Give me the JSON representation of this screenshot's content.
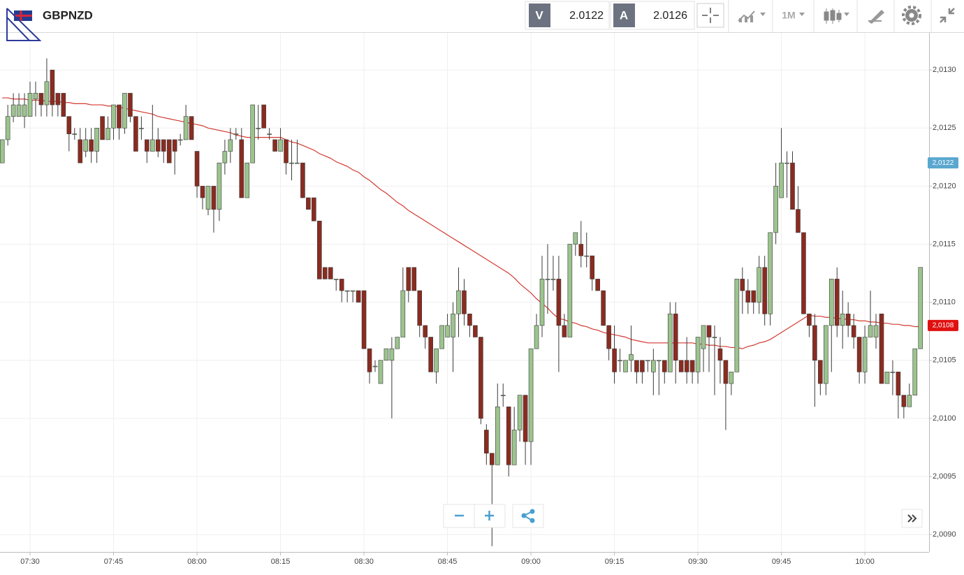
{
  "header": {
    "symbol": "GBPNZD",
    "bid": {
      "label": "V",
      "value": 2.0122
    },
    "ask": {
      "label": "A",
      "value": 2.0126
    },
    "interval": "1M"
  },
  "chart_data": {
    "type": "candlestick",
    "categories": [
      null,
      null,
      null,
      null,
      null,
      "07:30",
      null,
      null,
      null,
      null,
      null,
      null,
      null,
      null,
      null,
      null,
      null,
      null,
      null,
      null,
      "07:45",
      null,
      null,
      null,
      null,
      null,
      null,
      null,
      null,
      null,
      null,
      null,
      null,
      null,
      null,
      "08:00",
      null,
      null,
      null,
      null,
      null,
      null,
      null,
      null,
      null,
      null,
      null,
      null,
      null,
      null,
      "08:15",
      null,
      null,
      null,
      null,
      null,
      null,
      null,
      null,
      null,
      null,
      null,
      null,
      null,
      null,
      "08:30",
      null,
      null,
      null,
      null,
      null,
      null,
      null,
      null,
      null,
      null,
      null,
      null,
      null,
      null,
      "08:45",
      null,
      null,
      null,
      null,
      null,
      null,
      null,
      null,
      null,
      null,
      null,
      null,
      null,
      null,
      "09:00",
      null,
      null,
      null,
      null,
      null,
      null,
      null,
      null,
      null,
      null,
      null,
      null,
      null,
      null,
      "09:15",
      null,
      null,
      null,
      null,
      null,
      null,
      null,
      null,
      null,
      null,
      null,
      null,
      null,
      null,
      "09:30",
      null,
      null,
      null,
      null,
      null,
      null,
      null,
      null,
      null,
      null,
      null,
      null,
      null,
      null,
      "09:45",
      null,
      null,
      null,
      null,
      null,
      null,
      null,
      null,
      null,
      null,
      null,
      null,
      null,
      null,
      "10:00",
      null,
      null,
      null,
      null,
      null,
      null,
      null,
      null,
      null,
      null
    ],
    "ohlc": [
      [
        2.0122,
        2.0124,
        2.0122,
        2.0124
      ],
      [
        2.0124,
        2.0127,
        2.01235,
        2.0126
      ],
      [
        2.0126,
        2.0128,
        2.01255,
        2.0127
      ],
      [
        2.0126,
        2.0128,
        2.0126,
        2.0127
      ],
      [
        2.0126,
        2.0128,
        2.0125,
        2.0127
      ],
      [
        2.0126,
        2.0129,
        2.0126,
        2.0128
      ],
      [
        2.01275,
        2.0129,
        2.0126,
        2.0128
      ],
      [
        2.0128,
        2.0128,
        2.0126,
        2.0127
      ],
      [
        2.0127,
        2.0131,
        2.0126,
        2.0129
      ],
      [
        2.013,
        2.013,
        2.0126,
        2.0127
      ],
      [
        2.0128,
        2.0128,
        2.0126,
        2.0127
      ],
      [
        2.0128,
        2.0128,
        2.0126,
        2.0126
      ],
      [
        2.0126,
        2.0126,
        2.0123,
        2.01245
      ],
      [
        2.01245,
        2.0125,
        2.0124,
        2.01245
      ],
      [
        2.0124,
        2.0125,
        2.0122,
        2.0122
      ],
      [
        2.0123,
        2.0125,
        2.01225,
        2.0124
      ],
      [
        2.0124,
        2.0125,
        2.0122,
        2.0123
      ],
      [
        2.0123,
        2.0125,
        2.0122,
        2.0125
      ],
      [
        2.0126,
        2.0126,
        2.0124,
        2.0124
      ],
      [
        2.0124,
        2.0126,
        2.0124,
        2.0125
      ],
      [
        2.0125,
        2.0127,
        2.0124,
        2.0127
      ],
      [
        2.0127,
        2.0127,
        2.0124,
        2.0125
      ],
      [
        2.0125,
        2.0128,
        2.01245,
        2.0128
      ],
      [
        2.0128,
        2.0128,
        2.01255,
        2.0126
      ],
      [
        2.0126,
        2.0126,
        2.0123,
        2.0123
      ],
      [
        2.0125,
        2.0126,
        2.0124,
        2.0125
      ],
      [
        2.0124,
        2.0124,
        2.0122,
        2.0123
      ],
      [
        2.0123,
        2.0127,
        2.0123,
        2.0124
      ],
      [
        2.0124,
        2.0125,
        2.01225,
        2.0123
      ],
      [
        2.0124,
        2.0124,
        2.0122,
        2.0123
      ],
      [
        2.0124,
        2.0124,
        2.0122,
        2.0122
      ],
      [
        2.0124,
        2.0124,
        2.0121,
        2.0123
      ],
      [
        2.0124,
        2.01245,
        2.01235,
        2.0124
      ],
      [
        2.0124,
        2.0127,
        2.0124,
        2.0126
      ],
      [
        2.0126,
        2.0126,
        2.0124,
        2.0124
      ],
      [
        2.0123,
        2.0123,
        2.0119,
        2.012
      ],
      [
        2.012,
        2.012,
        2.0118,
        2.0119
      ],
      [
        2.0118,
        2.012,
        2.01175,
        2.012
      ],
      [
        2.012,
        2.012,
        2.0116,
        2.0118
      ],
      [
        2.0118,
        2.0122,
        2.0117,
        2.0122
      ],
      [
        2.0122,
        2.0124,
        2.0121,
        2.0123
      ],
      [
        2.0123,
        2.0125,
        2.0122,
        2.0124
      ],
      [
        2.01245,
        2.0125,
        2.0124,
        2.01245
      ],
      [
        2.0124,
        2.0125,
        2.0119,
        2.0119
      ],
      [
        2.0119,
        2.0122,
        2.0119,
        2.0122
      ],
      [
        2.0122,
        2.0127,
        2.0122,
        2.0127
      ],
      [
        2.0125,
        2.0127,
        2.0124,
        2.0125
      ],
      [
        2.0127,
        2.0127,
        2.0125,
        2.0125
      ],
      [
        2.01245,
        2.0125,
        2.0124,
        2.01245
      ],
      [
        2.0124,
        2.0124,
        2.0123,
        2.0123
      ],
      [
        2.0123,
        2.0125,
        2.0123,
        2.0124
      ],
      [
        2.0124,
        2.0124,
        2.0121,
        2.0122
      ],
      [
        2.0122,
        2.0124,
        2.01205,
        2.0122
      ],
      [
        2.0122,
        2.0124,
        2.0122,
        2.0122
      ],
      [
        2.0122,
        2.0122,
        2.0119,
        2.0119
      ],
      [
        2.0119,
        2.0119,
        2.0118,
        2.0118
      ],
      [
        2.0119,
        2.0119,
        2.0117,
        2.0117
      ],
      [
        2.0117,
        2.0117,
        2.0112,
        2.0112
      ],
      [
        2.0113,
        2.0113,
        2.0112,
        2.0112
      ],
      [
        2.0113,
        2.0113,
        2.0112,
        2.0112
      ],
      [
        2.0112,
        2.0112,
        2.0111,
        2.0112
      ],
      [
        2.0112,
        2.0112,
        2.011,
        2.0111
      ],
      [
        2.0111,
        2.0111,
        2.011,
        2.0111
      ],
      [
        2.0111,
        2.0111,
        2.011,
        2.0111
      ],
      [
        2.0111,
        2.0111,
        2.011,
        2.011
      ],
      [
        2.0111,
        2.0111,
        2.0106,
        2.0106
      ],
      [
        2.0106,
        2.0106,
        2.0103,
        2.0104
      ],
      [
        2.01045,
        2.0105,
        2.0104,
        2.01045
      ],
      [
        2.0103,
        2.0105,
        2.0103,
        2.0105
      ],
      [
        2.0105,
        2.0106,
        2.0105,
        2.0106
      ],
      [
        2.0105,
        2.0107,
        2.01,
        2.0106
      ],
      [
        2.0106,
        2.0107,
        2.0106,
        2.0107
      ],
      [
        2.0107,
        2.0113,
        2.0107,
        2.0111
      ],
      [
        2.0113,
        2.0113,
        2.011,
        2.0111
      ],
      [
        2.0113,
        2.0113,
        2.0111,
        2.0111
      ],
      [
        2.0111,
        2.0111,
        2.0107,
        2.0108
      ],
      [
        2.0108,
        2.0108,
        2.0106,
        2.0107
      ],
      [
        2.0107,
        2.0107,
        2.0104,
        2.0104
      ],
      [
        2.0104,
        2.0106,
        2.0103,
        2.0106
      ],
      [
        2.0106,
        2.0108,
        2.0106,
        2.0108
      ],
      [
        2.0107,
        2.0109,
        2.0107,
        2.0108
      ],
      [
        2.0107,
        2.011,
        2.0104,
        2.0109
      ],
      [
        2.0109,
        2.0113,
        2.0107,
        2.0111
      ],
      [
        2.0111,
        2.0112,
        2.0108,
        2.0109
      ],
      [
        2.0109,
        2.0109,
        2.0107,
        2.0108
      ],
      [
        2.0108,
        2.0108,
        2.0107,
        2.0107
      ],
      [
        2.0107,
        2.0107,
        2.00995,
        2.01
      ],
      [
        2.0099,
        2.00995,
        2.0096,
        2.0097
      ],
      [
        2.0097,
        2.0097,
        2.0089,
        2.0096
      ],
      [
        2.0096,
        2.0103,
        2.0096,
        2.0101
      ],
      [
        2.0102,
        2.0103,
        2.0101,
        2.0102
      ],
      [
        2.0101,
        2.0101,
        2.0095,
        2.0096
      ],
      [
        2.0096,
        2.0101,
        2.0096,
        2.0099
      ],
      [
        2.0099,
        2.0102,
        2.0098,
        2.0102
      ],
      [
        2.0102,
        2.0102,
        2.0096,
        2.0098
      ],
      [
        2.0098,
        2.0106,
        2.0096,
        2.0106
      ],
      [
        2.0106,
        2.0109,
        2.0106,
        2.0108
      ],
      [
        2.0108,
        2.0114,
        2.0107,
        2.0112
      ],
      [
        2.0112,
        2.0115,
        2.0109,
        2.0112
      ],
      [
        2.0112,
        2.0114,
        2.0111,
        2.0112
      ],
      [
        2.0112,
        2.0114,
        2.0104,
        2.0108
      ],
      [
        2.0108,
        2.0109,
        2.0107,
        2.0107
      ],
      [
        2.0107,
        2.0115,
        2.0107,
        2.0115
      ],
      [
        2.0115,
        2.0116,
        2.0114,
        2.0116
      ],
      [
        2.0115,
        2.0117,
        2.0113,
        2.0114
      ],
      [
        2.0114,
        2.0116,
        2.0113,
        2.0114
      ],
      [
        2.0114,
        2.0114,
        2.0111,
        2.0112
      ],
      [
        2.0112,
        2.0112,
        2.0111,
        2.0111
      ],
      [
        2.0111,
        2.0111,
        2.0108,
        2.0108
      ],
      [
        2.0108,
        2.0108,
        2.0105,
        2.0106
      ],
      [
        2.0106,
        2.0108,
        2.0103,
        2.0104
      ],
      [
        2.0105,
        2.0106,
        2.0104,
        2.0105
      ],
      [
        2.0104,
        2.0105,
        2.0104,
        2.0105
      ],
      [
        2.0105,
        2.0108,
        2.0104,
        2.01055
      ],
      [
        2.0105,
        2.0105,
        2.0103,
        2.0104
      ],
      [
        2.0105,
        2.0105,
        2.0103,
        2.0104
      ],
      [
        2.0105,
        2.0105,
        2.0104,
        2.0105
      ],
      [
        2.0104,
        2.0106,
        2.0102,
        2.0105
      ],
      [
        2.0105,
        2.0105,
        2.0102,
        2.0105
      ],
      [
        2.0105,
        2.0105,
        2.0103,
        2.0104
      ],
      [
        2.0104,
        2.011,
        2.0104,
        2.0109
      ],
      [
        2.0109,
        2.011,
        2.0103,
        2.0105
      ],
      [
        2.0105,
        2.0105,
        2.0104,
        2.0104
      ],
      [
        2.0105,
        2.0107,
        2.0103,
        2.0104
      ],
      [
        2.0105,
        2.0105,
        2.0103,
        2.0104
      ],
      [
        2.0104,
        2.0107,
        2.0103,
        2.0107
      ],
      [
        2.0106,
        2.0108,
        2.0104,
        2.0108
      ],
      [
        2.0108,
        2.0108,
        2.0104,
        2.0107
      ],
      [
        2.0107,
        2.0108,
        2.0102,
        2.0107
      ],
      [
        2.0106,
        2.0107,
        2.0103,
        2.0105
      ],
      [
        2.0105,
        2.0105,
        2.0099,
        2.0103
      ],
      [
        2.0103,
        2.0104,
        2.0102,
        2.0104
      ],
      [
        2.0104,
        2.0112,
        2.0104,
        2.0112
      ],
      [
        2.0112,
        2.0113,
        2.0109,
        2.0111
      ],
      [
        2.0111,
        2.0112,
        2.0109,
        2.011
      ],
      [
        2.0111,
        2.0111,
        2.0109,
        2.011
      ],
      [
        2.011,
        2.0114,
        2.0109,
        2.0113
      ],
      [
        2.0113,
        2.0114,
        2.0108,
        2.0109
      ],
      [
        2.0109,
        2.0116,
        2.0108,
        2.0116
      ],
      [
        2.0116,
        2.0122,
        2.0115,
        2.012
      ],
      [
        2.0119,
        2.0125,
        2.0119,
        2.0122
      ],
      [
        2.0122,
        2.0123,
        2.0119,
        2.0122
      ],
      [
        2.0122,
        2.0123,
        2.0118,
        2.0118
      ],
      [
        2.0118,
        2.012,
        2.0116,
        2.0116
      ],
      [
        2.0116,
        2.0116,
        2.0109,
        2.0109
      ],
      [
        2.0109,
        2.0109,
        2.0107,
        2.0108
      ],
      [
        2.0108,
        2.0109,
        2.0101,
        2.0105
      ],
      [
        2.0105,
        2.0105,
        2.0102,
        2.0103
      ],
      [
        2.0103,
        2.0108,
        2.0102,
        2.0108
      ],
      [
        2.0108,
        2.0112,
        2.0104,
        2.0112
      ],
      [
        2.0112,
        2.0113,
        2.0107,
        2.0108
      ],
      [
        2.0108,
        2.0111,
        2.0106,
        2.0109
      ],
      [
        2.0109,
        2.011,
        2.0107,
        2.0108
      ],
      [
        2.0108,
        2.0109,
        2.0106,
        2.0107
      ],
      [
        2.0107,
        2.0107,
        2.0103,
        2.0104
      ],
      [
        2.0104,
        2.0108,
        2.0103,
        2.0107
      ],
      [
        2.0107,
        2.0111,
        2.0107,
        2.0108
      ],
      [
        2.0107,
        2.0109,
        2.0106,
        2.0108
      ],
      [
        2.0109,
        2.0109,
        2.0103,
        2.0103
      ],
      [
        2.0103,
        2.0104,
        2.0103,
        2.0104
      ],
      [
        2.0104,
        2.0105,
        2.0102,
        2.0104
      ],
      [
        2.0104,
        2.0104,
        2.01,
        2.0102
      ],
      [
        2.0102,
        2.0102,
        2.01,
        2.0101
      ],
      [
        2.0101,
        2.0103,
        2.0101,
        2.0102
      ],
      [
        2.0102,
        2.0106,
        2.0102,
        2.0106
      ],
      [
        2.0106,
        2.0113,
        2.0106,
        2.0113
      ]
    ],
    "up_color": "#9cc48e",
    "down_color": "#8b2b20",
    "edge_color": "#3a3a3a",
    "ma": {
      "color": "#d23a30",
      "values": [
        2.01276,
        2.01276,
        2.01275,
        2.01275,
        2.01275,
        2.01274,
        2.01274,
        2.01274,
        2.01273,
        2.01273,
        2.01273,
        2.01272,
        2.01272,
        2.01271,
        2.01271,
        2.01271,
        2.0127,
        2.0127,
        2.0127,
        2.01269,
        2.01269,
        2.01268,
        2.01267,
        2.01266,
        2.01265,
        2.01264,
        2.01263,
        2.01262,
        2.0126,
        2.01259,
        2.01258,
        2.01257,
        2.01256,
        2.01255,
        2.01254,
        2.01253,
        2.01252,
        2.0125,
        2.01249,
        2.01248,
        2.01247,
        2.01246,
        2.01244,
        2.01243,
        2.01242,
        2.01242,
        2.01242,
        2.01242,
        2.01242,
        2.01242,
        2.01242,
        2.0124,
        2.01238,
        2.01237,
        2.01235,
        2.01233,
        2.01231,
        2.01228,
        2.01226,
        2.01224,
        2.01221,
        2.01219,
        2.01217,
        2.01214,
        2.01212,
        2.01208,
        2.01205,
        2.01201,
        2.01197,
        2.01194,
        2.0119,
        2.01186,
        2.01183,
        2.01179,
        2.01176,
        2.01173,
        2.0117,
        2.01167,
        2.01164,
        2.01161,
        2.01158,
        2.01155,
        2.01152,
        2.01149,
        2.01146,
        2.01143,
        2.0114,
        2.01137,
        2.01134,
        2.01131,
        2.01128,
        2.01125,
        2.01121,
        2.01116,
        2.01112,
        2.01108,
        2.01103,
        2.01099,
        2.01095,
        2.0109,
        2.01086,
        2.01085,
        2.01083,
        2.01082,
        2.0108,
        2.01079,
        2.01077,
        2.01076,
        2.01074,
        2.01073,
        2.01072,
        2.01071,
        2.0107,
        2.01068,
        2.01067,
        2.01066,
        2.01065,
        2.01065,
        2.01065,
        2.01065,
        2.01065,
        2.01065,
        2.01065,
        2.01065,
        2.01065,
        2.01064,
        2.01064,
        2.01063,
        2.01063,
        2.01062,
        2.01062,
        2.01061,
        2.01061,
        2.0106,
        2.01062,
        2.01063,
        2.01065,
        2.01066,
        2.01068,
        2.01071,
        2.01074,
        2.01077,
        2.0108,
        2.01083,
        2.01086,
        2.01089,
        2.01088,
        2.01088,
        2.01087,
        2.01087,
        2.01086,
        2.01086,
        2.01085,
        2.01085,
        2.01084,
        2.01084,
        2.01083,
        2.01083,
        2.01082,
        2.01082,
        2.01081,
        2.01081,
        2.0108,
        2.0108,
        2.01079,
        2.01079
      ]
    },
    "ylim": [
      2.00885,
      2.01332
    ],
    "yticks": [
      {
        "value": 2.009,
        "label": "2,0090"
      },
      {
        "value": 2.0095,
        "label": "2,0095"
      },
      {
        "value": 2.01,
        "label": "2,0100"
      },
      {
        "value": 2.0105,
        "label": "2,0105"
      },
      {
        "value": 2.011,
        "label": "2,0110"
      },
      {
        "value": 2.0115,
        "label": "2,0115"
      },
      {
        "value": 2.012,
        "label": "2,0120"
      },
      {
        "value": 2.0125,
        "label": "2,0125"
      },
      {
        "value": 2.013,
        "label": "2,0130"
      }
    ],
    "price_tags": [
      {
        "value": 2.0122,
        "label": "2,0122",
        "color": "#5aa7cf"
      },
      {
        "value": 2.0108,
        "label": "2,0108",
        "color": "#e01010"
      }
    ],
    "grid": true
  }
}
